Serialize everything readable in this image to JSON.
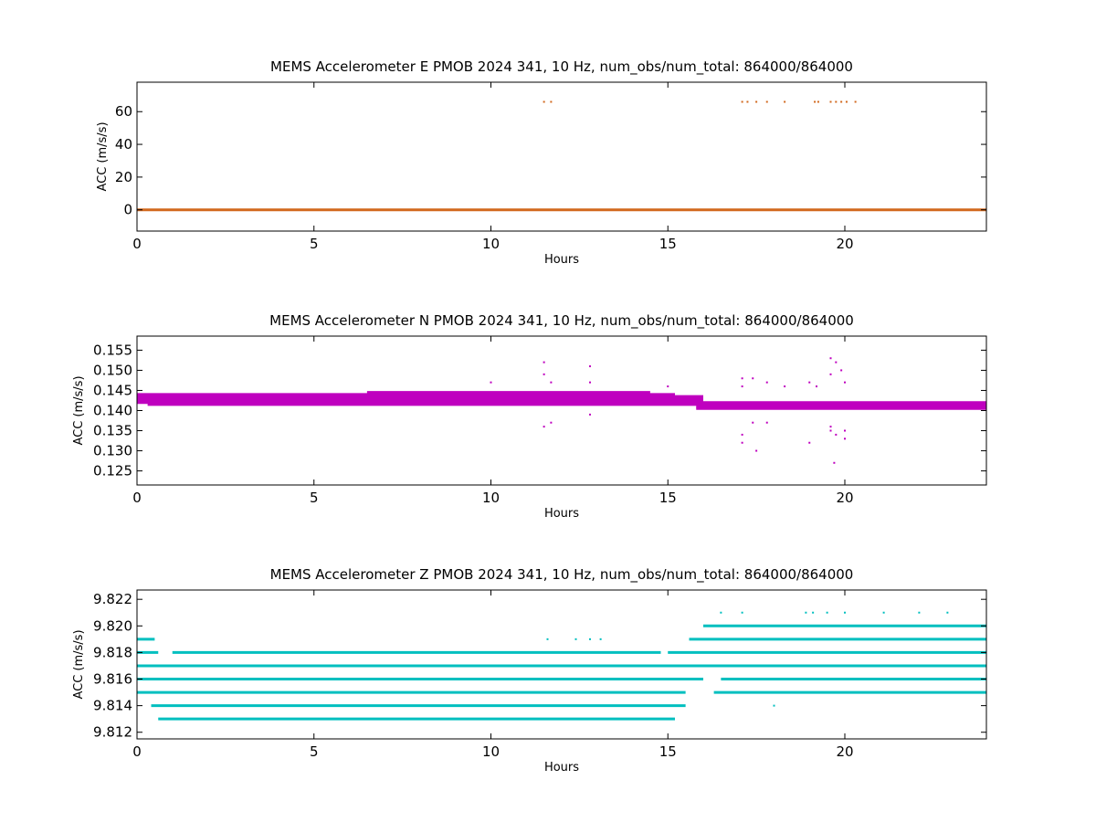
{
  "chart_data": [
    {
      "type": "scatter",
      "title": "MEMS Accelerometer E PMOB 2024 341, 10 Hz, num_obs/num_total: 864000/864000",
      "xlabel": "Hours",
      "ylabel": "ACC (m/s/s)",
      "xlim": [
        0,
        24
      ],
      "ylim": [
        -13,
        78
      ],
      "xticks": [
        0,
        5,
        10,
        15,
        20
      ],
      "yticks": [
        0,
        20,
        40,
        60
      ],
      "ytick_labels": [
        "0",
        "20",
        "40",
        "60"
      ],
      "grid": false,
      "color": "#d2691e",
      "series": [
        {
          "bands": [
            {
              "y": 0.0,
              "x0": 0,
              "x1": 24
            }
          ],
          "points": [
            {
              "x": 11.5,
              "y": 66
            },
            {
              "x": 11.7,
              "y": 66
            },
            {
              "x": 17.1,
              "y": 66
            },
            {
              "x": 17.25,
              "y": 66
            },
            {
              "x": 17.5,
              "y": 66
            },
            {
              "x": 17.8,
              "y": 66
            },
            {
              "x": 18.3,
              "y": 66
            },
            {
              "x": 19.15,
              "y": 66
            },
            {
              "x": 19.25,
              "y": 66
            },
            {
              "x": 19.6,
              "y": 66
            },
            {
              "x": 19.75,
              "y": 66
            },
            {
              "x": 19.9,
              "y": 66
            },
            {
              "x": 20.05,
              "y": 66
            },
            {
              "x": 20.3,
              "y": 66
            }
          ]
        }
      ]
    },
    {
      "type": "scatter",
      "title": "MEMS Accelerometer N PMOB 2024 341, 10 Hz, num_obs/num_total: 864000/864000",
      "xlabel": "Hours",
      "ylabel": "ACC (m/s/s)",
      "xlim": [
        0,
        24
      ],
      "ylim": [
        0.1215,
        0.1585
      ],
      "xticks": [
        0,
        5,
        10,
        15,
        20
      ],
      "yticks": [
        0.125,
        0.13,
        0.135,
        0.14,
        0.145,
        0.15,
        0.155
      ],
      "ytick_labels": [
        "0.125",
        "0.130",
        "0.135",
        "0.140",
        "0.145",
        "0.150",
        "0.155"
      ],
      "grid": false,
      "color": "#bf00bf",
      "series": [
        {
          "bands": [
            {
              "y": 0.1435,
              "x0": 0,
              "x1": 16
            },
            {
              "y": 0.1425,
              "x0": 0,
              "x1": 16
            },
            {
              "y": 0.143,
              "x0": 0,
              "x1": 16
            },
            {
              "y": 0.142,
              "x0": 0,
              "x1": 24
            },
            {
              "y": 0.1415,
              "x0": 0.3,
              "x1": 24
            },
            {
              "y": 0.141,
              "x0": 15.8,
              "x1": 24
            },
            {
              "y": 0.1405,
              "x0": 15.8,
              "x1": 24
            },
            {
              "y": 0.144,
              "x0": 0,
              "x1": 15.2
            },
            {
              "y": 0.1445,
              "x0": 6.5,
              "x1": 14.5
            }
          ],
          "points": [
            {
              "x": 11.5,
              "y": 0.152
            },
            {
              "x": 11.5,
              "y": 0.149
            },
            {
              "x": 11.7,
              "y": 0.147
            },
            {
              "x": 11.5,
              "y": 0.136
            },
            {
              "x": 11.7,
              "y": 0.137
            },
            {
              "x": 12.8,
              "y": 0.151
            },
            {
              "x": 12.8,
              "y": 0.147
            },
            {
              "x": 12.8,
              "y": 0.139
            },
            {
              "x": 10.0,
              "y": 0.147
            },
            {
              "x": 15.0,
              "y": 0.146
            },
            {
              "x": 17.1,
              "y": 0.148
            },
            {
              "x": 17.1,
              "y": 0.146
            },
            {
              "x": 17.1,
              "y": 0.134
            },
            {
              "x": 17.1,
              "y": 0.132
            },
            {
              "x": 17.4,
              "y": 0.148
            },
            {
              "x": 17.4,
              "y": 0.137
            },
            {
              "x": 17.5,
              "y": 0.13
            },
            {
              "x": 17.8,
              "y": 0.147
            },
            {
              "x": 17.8,
              "y": 0.137
            },
            {
              "x": 18.3,
              "y": 0.146
            },
            {
              "x": 19.0,
              "y": 0.147
            },
            {
              "x": 19.0,
              "y": 0.132
            },
            {
              "x": 19.2,
              "y": 0.146
            },
            {
              "x": 19.6,
              "y": 0.153
            },
            {
              "x": 19.6,
              "y": 0.149
            },
            {
              "x": 19.6,
              "y": 0.136
            },
            {
              "x": 19.6,
              "y": 0.135
            },
            {
              "x": 19.7,
              "y": 0.127
            },
            {
              "x": 19.75,
              "y": 0.152
            },
            {
              "x": 19.75,
              "y": 0.134
            },
            {
              "x": 19.9,
              "y": 0.15
            },
            {
              "x": 20.0,
              "y": 0.147
            },
            {
              "x": 20.0,
              "y": 0.133
            },
            {
              "x": 20.0,
              "y": 0.135
            }
          ]
        }
      ]
    },
    {
      "type": "scatter",
      "title": "MEMS Accelerometer Z PMOB 2024 341, 10 Hz, num_obs/num_total: 864000/864000",
      "xlabel": "Hours",
      "ylabel": "ACC (m/s/s)",
      "xlim": [
        0,
        24
      ],
      "ylim": [
        9.8115,
        9.8227
      ],
      "xticks": [
        0,
        5,
        10,
        15,
        20
      ],
      "yticks": [
        9.812,
        9.814,
        9.816,
        9.818,
        9.82,
        9.822
      ],
      "ytick_labels": [
        "9.812",
        "9.814",
        "9.816",
        "9.818",
        "9.820",
        "9.822"
      ],
      "grid": false,
      "color": "#00bfbf",
      "series": [
        {
          "bands": [
            {
              "y": 9.817,
              "x0": 0,
              "x1": 24
            },
            {
              "y": 9.816,
              "x0": 0,
              "x1": 16.0
            },
            {
              "y": 9.815,
              "x0": 0,
              "x1": 15.5
            },
            {
              "y": 9.816,
              "x0": 16.5,
              "x1": 24
            },
            {
              "y": 9.815,
              "x0": 16.3,
              "x1": 24
            },
            {
              "y": 9.814,
              "x0": 0.4,
              "x1": 15.5
            },
            {
              "y": 9.813,
              "x0": 0.6,
              "x1": 15.2
            },
            {
              "y": 9.818,
              "x0": 0,
              "x1": 0.6
            },
            {
              "y": 9.818,
              "x0": 1.0,
              "x1": 14.8
            },
            {
              "y": 9.818,
              "x0": 15.0,
              "x1": 24
            },
            {
              "y": 9.819,
              "x0": 0,
              "x1": 0.5
            },
            {
              "y": 9.819,
              "x0": 15.6,
              "x1": 24
            },
            {
              "y": 9.82,
              "x0": 16.0,
              "x1": 24
            }
          ],
          "points": [
            {
              "x": 11.6,
              "y": 9.819
            },
            {
              "x": 12.4,
              "y": 9.819
            },
            {
              "x": 12.8,
              "y": 9.819
            },
            {
              "x": 13.1,
              "y": 9.819
            },
            {
              "x": 16.5,
              "y": 9.821
            },
            {
              "x": 17.1,
              "y": 9.821
            },
            {
              "x": 18.9,
              "y": 9.821
            },
            {
              "x": 19.1,
              "y": 9.821
            },
            {
              "x": 19.5,
              "y": 9.821
            },
            {
              "x": 20.0,
              "y": 9.821
            },
            {
              "x": 21.1,
              "y": 9.821
            },
            {
              "x": 22.1,
              "y": 9.821
            },
            {
              "x": 22.9,
              "y": 9.821
            },
            {
              "x": 18.0,
              "y": 9.814
            }
          ]
        }
      ]
    }
  ]
}
